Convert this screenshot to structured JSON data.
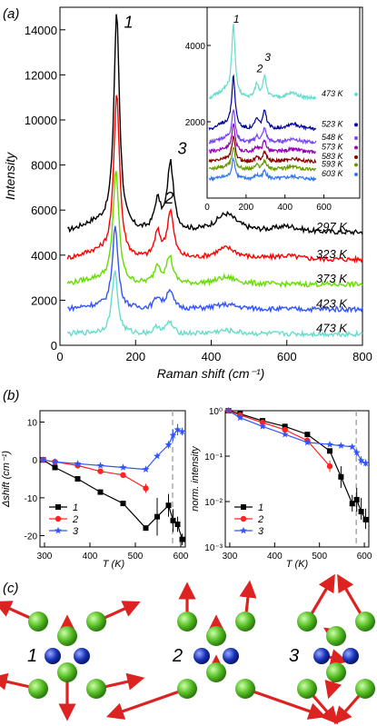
{
  "chart_data": [
    {
      "panel": "(a)",
      "type": "line",
      "xlabel": "Raman shift (cm⁻¹)",
      "ylabel": "Intensity",
      "xlim": [
        0,
        800
      ],
      "ylim": [
        0,
        15000
      ],
      "xticks": [
        "0",
        "200",
        "400",
        "600",
        "800"
      ],
      "yticks": [
        "0",
        "2000",
        "4000",
        "6000",
        "8000",
        "10000",
        "12000",
        "14000"
      ],
      "peak_labels": [
        {
          "text": "1",
          "x": 150,
          "y": 14500
        },
        {
          "text": "2",
          "x": 258,
          "y": 6700
        },
        {
          "text": "3",
          "x": 292,
          "y": 8900
        }
      ],
      "series": [
        {
          "name": "297 K",
          "color": "#000000",
          "label": "297 K",
          "baseline": 5000,
          "peaks": [
            [
              150,
              9500
            ],
            [
              258,
              1300
            ],
            [
              292,
              3000
            ],
            [
              440,
              800
            ],
            [
              600,
              250
            ]
          ]
        },
        {
          "name": "323 K",
          "color": "#ff0000",
          "label": "323 K",
          "baseline": 3800,
          "peaks": [
            [
              150,
              7300
            ],
            [
              258,
              1100
            ],
            [
              292,
              2100
            ],
            [
              440,
              500
            ],
            [
              600,
              150
            ]
          ]
        },
        {
          "name": "373 K",
          "color": "#66dd00",
          "label": "373 K",
          "baseline": 2700,
          "peaks": [
            [
              148,
              5000
            ],
            [
              258,
              800
            ],
            [
              290,
              1200
            ],
            [
              440,
              300
            ]
          ]
        },
        {
          "name": "423 K",
          "color": "#3355ff",
          "label": "423 K",
          "baseline": 1600,
          "peaks": [
            [
              146,
              3600
            ],
            [
              258,
              500
            ],
            [
              290,
              850
            ],
            [
              440,
              200
            ]
          ]
        },
        {
          "name": "473 K",
          "color": "#66ddcc",
          "label": "473 K",
          "baseline": 500,
          "peaks": [
            [
              145,
              2800
            ],
            [
              258,
              300
            ],
            [
              290,
              500
            ],
            [
              440,
              150
            ]
          ]
        }
      ],
      "inset": {
        "xlim": [
          0,
          700
        ],
        "ylim": [
          0,
          5000
        ],
        "xticks": [
          "0",
          "200",
          "400",
          "600"
        ],
        "yticks": [
          "2000",
          "4000"
        ],
        "peak_labels": [
          {
            "text": "1",
            "x": 135,
            "y": 4600
          },
          {
            "text": "2",
            "x": 255,
            "y": 3300
          },
          {
            "text": "3",
            "x": 295,
            "y": 3600
          }
        ],
        "series": [
          {
            "name": "473 K",
            "color": "#66ddcc",
            "label": "473 K",
            "baseline": 2600,
            "peaks": [
              [
                135,
                1800
              ],
              [
                255,
                350
              ],
              [
                295,
                550
              ],
              [
                440,
                150
              ]
            ]
          },
          {
            "name": "523 K",
            "color": "#000099",
            "label": "523 K",
            "baseline": 1800,
            "peaks": [
              [
                135,
                1300
              ],
              [
                255,
                250
              ],
              [
                295,
                450
              ],
              [
                440,
                150
              ]
            ]
          },
          {
            "name": "548 K",
            "color": "#7744ee",
            "label": "548 K",
            "baseline": 1450,
            "peaks": [
              [
                135,
                800
              ],
              [
                255,
                150
              ],
              [
                295,
                350
              ],
              [
                440,
                100
              ]
            ]
          },
          {
            "name": "573 K",
            "color": "#9900bb",
            "label": "573 K",
            "baseline": 1200,
            "peaks": [
              [
                135,
                650
              ],
              [
                255,
                120
              ],
              [
                295,
                280
              ],
              [
                440,
                80
              ]
            ]
          },
          {
            "name": "583 K",
            "color": "#880000",
            "label": "583 K",
            "baseline": 950,
            "peaks": [
              [
                135,
                600
              ],
              [
                255,
                100
              ],
              [
                295,
                250
              ],
              [
                440,
                80
              ]
            ]
          },
          {
            "name": "593 K",
            "color": "#669900",
            "label": "593 K",
            "baseline": 750,
            "peaks": [
              [
                135,
                550
              ],
              [
                255,
                100
              ],
              [
                295,
                220
              ],
              [
                440,
                70
              ]
            ]
          },
          {
            "name": "603 K",
            "color": "#3377ee",
            "label": "603 K",
            "baseline": 500,
            "peaks": [
              [
                135,
                500
              ],
              [
                255,
                90
              ],
              [
                295,
                200
              ],
              [
                440,
                60
              ]
            ]
          }
        ]
      }
    },
    {
      "panel": "(b)",
      "type": "line",
      "xlabel": "T (K)",
      "ylabel": "Δshift (cm⁻¹)",
      "xlim": [
        290,
        610
      ],
      "ylim": [
        -23,
        13
      ],
      "xticks": [
        "300",
        "400",
        "500",
        "600"
      ],
      "yticks": [
        "10",
        "0",
        "-10",
        "-20"
      ],
      "vline": 582,
      "legend": [
        "1",
        "2",
        "3"
      ],
      "series": [
        {
          "name": "1",
          "color": "#000000",
          "marker": "square",
          "x": [
            297,
            323,
            373,
            423,
            473,
            523,
            548,
            573,
            583,
            593,
            603
          ],
          "y": [
            0,
            -2,
            -5,
            -8.5,
            -11.5,
            -18,
            -15,
            -12,
            -16,
            -17,
            -21
          ],
          "err": [
            0,
            0,
            0,
            0,
            0,
            0,
            5,
            3,
            3,
            2,
            1.5
          ]
        },
        {
          "name": "2",
          "color": "#ff2222",
          "marker": "circle",
          "x": [
            297,
            323,
            373,
            423,
            473,
            523
          ],
          "y": [
            0,
            -0.5,
            -1.5,
            -3,
            -4,
            -7.5
          ],
          "err": [
            0,
            0,
            0,
            0,
            0,
            1.2
          ]
        },
        {
          "name": "3",
          "color": "#3355ff",
          "marker": "star",
          "x": [
            297,
            323,
            373,
            423,
            473,
            523,
            548,
            573,
            583,
            593,
            603
          ],
          "y": [
            0,
            -0.5,
            -1,
            -1.5,
            -2,
            -2.5,
            1,
            4,
            6.5,
            8,
            7.5
          ],
          "err": [
            0,
            0,
            0,
            0,
            0,
            0,
            0,
            1,
            1.5,
            1.5,
            1
          ]
        }
      ]
    },
    {
      "panel": "(b)",
      "type": "line",
      "xlabel": "T (K)",
      "ylabel": "norm. intensity",
      "xlim": [
        290,
        610
      ],
      "ylog": true,
      "ylim": [
        0.001,
        1
      ],
      "xticks": [
        "300",
        "400",
        "500",
        "600"
      ],
      "yticks": [
        "10⁰",
        "10⁻¹",
        "10⁻²",
        "10⁻³"
      ],
      "vline": 582,
      "legend": [
        "1",
        "2",
        "3"
      ],
      "series": [
        {
          "name": "1",
          "color": "#000000",
          "marker": "square",
          "x": [
            297,
            323,
            373,
            423,
            473,
            523,
            548,
            573,
            583,
            593,
            603
          ],
          "y": [
            1,
            0.85,
            0.6,
            0.45,
            0.3,
            0.13,
            0.035,
            0.009,
            0.011,
            0.006,
            0.004
          ],
          "err_low": [
            1,
            0.85,
            0.6,
            0.45,
            0.3,
            0.13,
            0.02,
            0.006,
            0.006,
            0.004,
            0.0025
          ],
          "err_high": [
            1,
            0.85,
            0.6,
            0.45,
            0.3,
            0.13,
            0.06,
            0.014,
            0.02,
            0.012,
            0.007
          ]
        },
        {
          "name": "2",
          "color": "#ff2222",
          "marker": "circle",
          "x": [
            297,
            323,
            373,
            423,
            473,
            523
          ],
          "y": [
            1,
            0.8,
            0.55,
            0.38,
            0.22,
            0.06
          ],
          "err_low": [
            1,
            0.8,
            0.55,
            0.38,
            0.22,
            0.045
          ],
          "err_high": [
            1,
            0.8,
            0.55,
            0.38,
            0.22,
            0.08
          ]
        },
        {
          "name": "3",
          "color": "#3355ff",
          "marker": "star",
          "x": [
            297,
            323,
            373,
            423,
            473,
            523,
            548,
            573,
            583,
            593,
            603
          ],
          "y": [
            1,
            0.7,
            0.45,
            0.3,
            0.2,
            0.18,
            0.17,
            0.16,
            0.12,
            0.08,
            0.07
          ],
          "err_low": [
            1,
            0.7,
            0.45,
            0.3,
            0.2,
            0.18,
            0.17,
            0.16,
            0.1,
            0.065,
            0.06
          ],
          "err_high": [
            1,
            0.7,
            0.45,
            0.3,
            0.2,
            0.18,
            0.17,
            0.16,
            0.14,
            0.1,
            0.085
          ]
        }
      ]
    }
  ],
  "panel_c": {
    "panel": "(c)",
    "mode_labels": [
      "1",
      "2",
      "3"
    ],
    "sphere_colors": {
      "green": "#66cc33",
      "blue": "#2244cc",
      "arrow": "#dd2222"
    }
  }
}
